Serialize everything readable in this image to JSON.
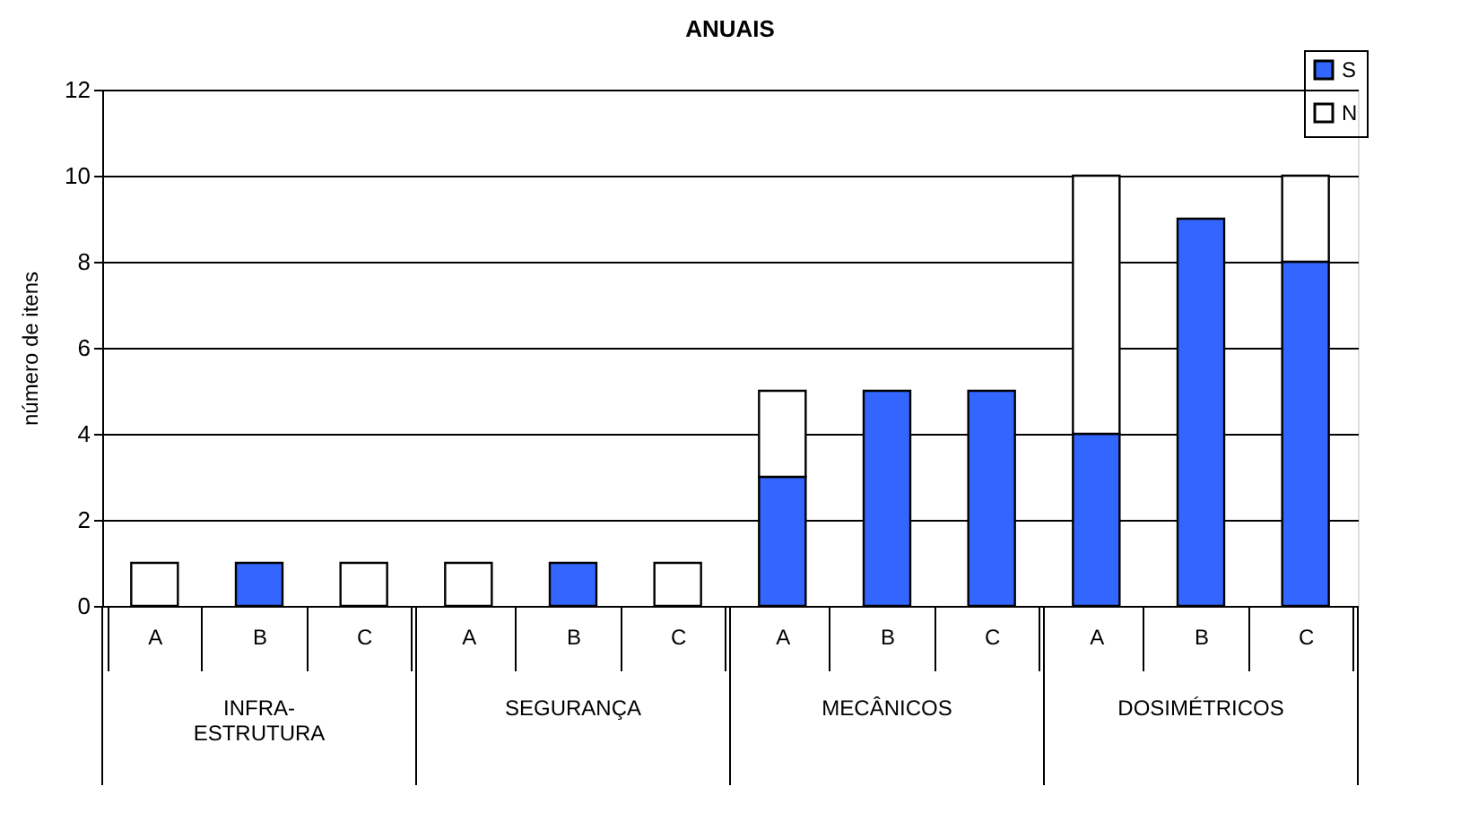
{
  "chart_data": {
    "type": "bar",
    "title": "ANUAIS",
    "ylabel": "número de itens",
    "stacked": true,
    "categories": [
      "A",
      "B",
      "C",
      "A",
      "B",
      "C",
      "A",
      "B",
      "C",
      "A",
      "B",
      "C"
    ],
    "series": [
      {
        "name": "S",
        "color": "#3366ff",
        "values": [
          0,
          1,
          0,
          0,
          1,
          0,
          3,
          5,
          5,
          4,
          9,
          8
        ]
      },
      {
        "name": "N",
        "color": "#ffffff",
        "values": [
          1,
          0,
          1,
          1,
          0,
          1,
          2,
          0,
          0,
          6,
          0,
          2
        ]
      }
    ],
    "annotations": [
      "INFRA-\nESTRUTURA",
      "SEGURANÇA",
      "MECÂNICOS",
      "DOSIMÉTRICOS"
    ],
    "ylim": [
      0,
      12
    ],
    "yticks": [
      0,
      2,
      4,
      6,
      8,
      10,
      12
    ],
    "grid": "y",
    "legend": "top right"
  }
}
